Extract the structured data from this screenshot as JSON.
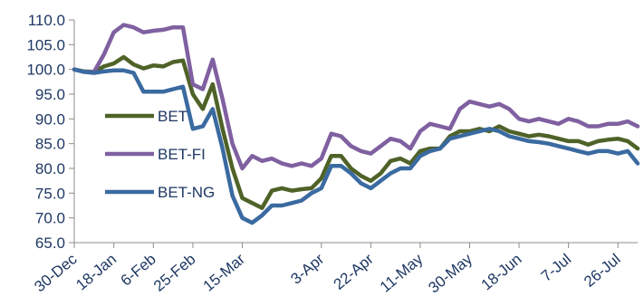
{
  "chart_data": {
    "type": "line",
    "title": "",
    "xlabel": "",
    "ylabel": "",
    "ylim": [
      65,
      110
    ],
    "yticks": [
      "65.0",
      "70.0",
      "75.0",
      "80.0",
      "85.0",
      "90.0",
      "95.0",
      "100.0",
      "105.0",
      "110.0"
    ],
    "xtick_labels": [
      "30-Dec",
      "18-Jan",
      "6-Feb",
      "25-Feb",
      "15-Mar",
      "3-Apr",
      "22-Apr",
      "11-May",
      "30-May",
      "18-Jun",
      "7-Jul",
      "26-Jul"
    ],
    "grid": false,
    "legend_position": "left",
    "x": [
      "30-Dec",
      "4-Jan",
      "9-Jan",
      "14-Jan",
      "18-Jan",
      "23-Jan",
      "28-Jan",
      "2-Feb",
      "6-Feb",
      "11-Feb",
      "16-Feb",
      "21-Feb",
      "25-Feb",
      "2-Mar",
      "7-Mar",
      "11-Mar",
      "13-Mar",
      "15-Mar",
      "17-Mar",
      "19-Mar",
      "21-Mar",
      "23-Mar",
      "25-Mar",
      "27-Mar",
      "29-Mar",
      "3-Apr",
      "6-Apr",
      "9-Apr",
      "13-Apr",
      "17-Apr",
      "22-Apr",
      "25-Apr",
      "28-Apr",
      "2-May",
      "6-May",
      "11-May",
      "14-May",
      "18-May",
      "22-May",
      "26-May",
      "30-May",
      "3-Jun",
      "7-Jun",
      "11-Jun",
      "15-Jun",
      "18-Jun",
      "22-Jun",
      "26-Jun",
      "30-Jun",
      "4-Jul",
      "7-Jul",
      "11-Jul",
      "15-Jul",
      "19-Jul",
      "23-Jul",
      "26-Jul",
      "29-Jul",
      "31-Jul"
    ],
    "series": [
      {
        "name": "BET",
        "color": "#4f6228",
        "values": [
          100.0,
          99.6,
          99.5,
          100.6,
          101.2,
          102.5,
          101.0,
          100.2,
          100.8,
          100.6,
          101.5,
          101.8,
          95.0,
          92.0,
          97.0,
          88.0,
          80.0,
          74.0,
          73.0,
          72.0,
          75.5,
          76.0,
          75.5,
          75.8,
          76.0,
          78.0,
          82.5,
          82.5,
          80.0,
          78.5,
          77.5,
          79.0,
          81.5,
          82.0,
          81.0,
          83.5,
          84.0,
          84.0,
          86.5,
          87.5,
          87.5,
          88.0,
          87.5,
          88.5,
          87.5,
          87.0,
          86.5,
          86.8,
          86.5,
          86.0,
          85.5,
          85.5,
          84.8,
          85.5,
          85.8,
          86.0,
          85.5,
          84.0
        ]
      },
      {
        "name": "BET-FI",
        "color": "#7f60a0",
        "values": [
          100.0,
          99.5,
          99.5,
          103.0,
          107.5,
          109.0,
          108.5,
          107.5,
          107.8,
          108.0,
          108.5,
          108.5,
          97.0,
          96.0,
          102.0,
          94.0,
          85.0,
          80.0,
          82.5,
          81.5,
          82.0,
          81.0,
          80.5,
          81.0,
          80.5,
          82.0,
          87.0,
          86.5,
          84.5,
          83.5,
          83.0,
          84.5,
          86.0,
          85.5,
          84.0,
          87.5,
          89.0,
          88.5,
          88.0,
          92.0,
          93.5,
          93.0,
          92.5,
          93.0,
          92.0,
          90.0,
          89.5,
          90.0,
          89.5,
          89.0,
          90.0,
          89.5,
          88.5,
          88.5,
          89.0,
          89.0,
          89.5,
          88.5
        ]
      },
      {
        "name": "BET-NG",
        "color": "#3a6aa0",
        "values": [
          100.0,
          99.5,
          99.3,
          99.6,
          99.8,
          99.8,
          99.3,
          95.5,
          95.5,
          95.5,
          96.0,
          96.5,
          88.0,
          88.5,
          92.0,
          84.0,
          74.5,
          70.0,
          69.0,
          70.5,
          72.5,
          72.5,
          73.0,
          73.5,
          75.0,
          76.0,
          80.5,
          80.5,
          79.0,
          77.0,
          76.0,
          77.5,
          79.0,
          80.0,
          80.0,
          82.5,
          83.5,
          84.0,
          86.0,
          86.5,
          87.0,
          87.5,
          88.0,
          87.5,
          86.5,
          86.0,
          85.5,
          85.3,
          85.0,
          84.5,
          84.0,
          83.5,
          83.0,
          83.5,
          83.5,
          83.0,
          83.5,
          81.0
        ]
      }
    ]
  }
}
